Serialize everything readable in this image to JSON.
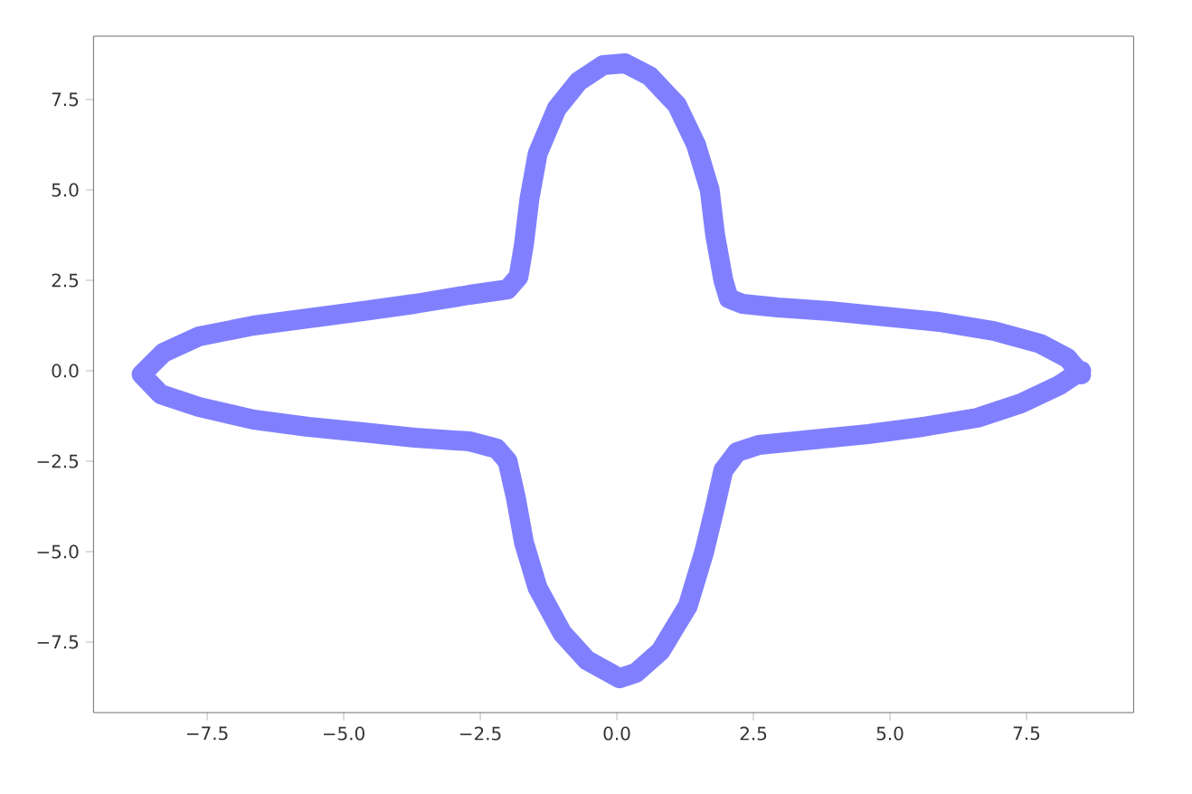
{
  "chart_data": {
    "type": "line",
    "xlim": [
      -9.58,
      9.46
    ],
    "ylim": [
      -9.45,
      9.25
    ],
    "xticks": [
      {
        "value": -7.5,
        "label": "−7.5"
      },
      {
        "value": -5,
        "label": "−5.0"
      },
      {
        "value": -2.5,
        "label": "−2.5"
      },
      {
        "value": 0,
        "label": "0.0"
      },
      {
        "value": 2.5,
        "label": "2.5"
      },
      {
        "value": 5,
        "label": "5.0"
      },
      {
        "value": 7.5,
        "label": "7.5"
      }
    ],
    "yticks": [
      {
        "value": -7.5,
        "label": "−7.5"
      },
      {
        "value": -5,
        "label": "−5.0"
      },
      {
        "value": -2.5,
        "label": "−2.5"
      },
      {
        "value": 0,
        "label": "0.0"
      },
      {
        "value": 2.5,
        "label": "2.5"
      },
      {
        "value": 5,
        "label": "5.0"
      },
      {
        "value": 7.5,
        "label": "7.5"
      }
    ],
    "marker": "none",
    "line_style": "solid",
    "series": [
      {
        "color": "#8080ff",
        "x": [
          8.5,
          8.25,
          7.75,
          6.9,
          5.9,
          4.9,
          3.9,
          2.95,
          2.3,
          2.05,
          1.95,
          1.8,
          1.7,
          1.45,
          1.1,
          0.6,
          0.15,
          -0.25,
          -0.7,
          -1.1,
          -1.45,
          -1.6,
          -1.7,
          -1.8,
          -2.0,
          -2.7,
          -3.7,
          -4.65,
          -5.65,
          -6.65,
          -7.65,
          -8.3,
          -8.7,
          -8.35,
          -7.65,
          -6.65,
          -5.65,
          -4.65,
          -3.7,
          -2.7,
          -2.2,
          -2.0,
          -1.85,
          -1.7,
          -1.45,
          -1.0,
          -0.55,
          0.05,
          0.35,
          0.8,
          1.3,
          1.6,
          1.8,
          1.95,
          2.2,
          2.6,
          3.6,
          4.6,
          5.6,
          6.6,
          7.4,
          8.1,
          8.5
        ],
        "values": [
          -0.1,
          0.35,
          0.75,
          1.1,
          1.35,
          1.5,
          1.65,
          1.75,
          1.85,
          2.0,
          2.5,
          3.75,
          5.0,
          6.25,
          7.35,
          8.15,
          8.5,
          8.45,
          8.0,
          7.25,
          6.0,
          4.75,
          3.5,
          2.6,
          2.25,
          2.1,
          1.85,
          1.65,
          1.45,
          1.25,
          0.95,
          0.5,
          -0.1,
          -0.65,
          -1.0,
          -1.35,
          -1.55,
          -1.7,
          -1.85,
          -1.95,
          -2.15,
          -2.5,
          -3.5,
          -4.75,
          -6.0,
          -7.25,
          -8.0,
          -8.5,
          -8.35,
          -7.75,
          -6.5,
          -5.0,
          -3.75,
          -2.75,
          -2.25,
          -2.05,
          -1.9,
          -1.75,
          -1.55,
          -1.3,
          -0.9,
          -0.4,
          0.0
        ]
      }
    ]
  }
}
